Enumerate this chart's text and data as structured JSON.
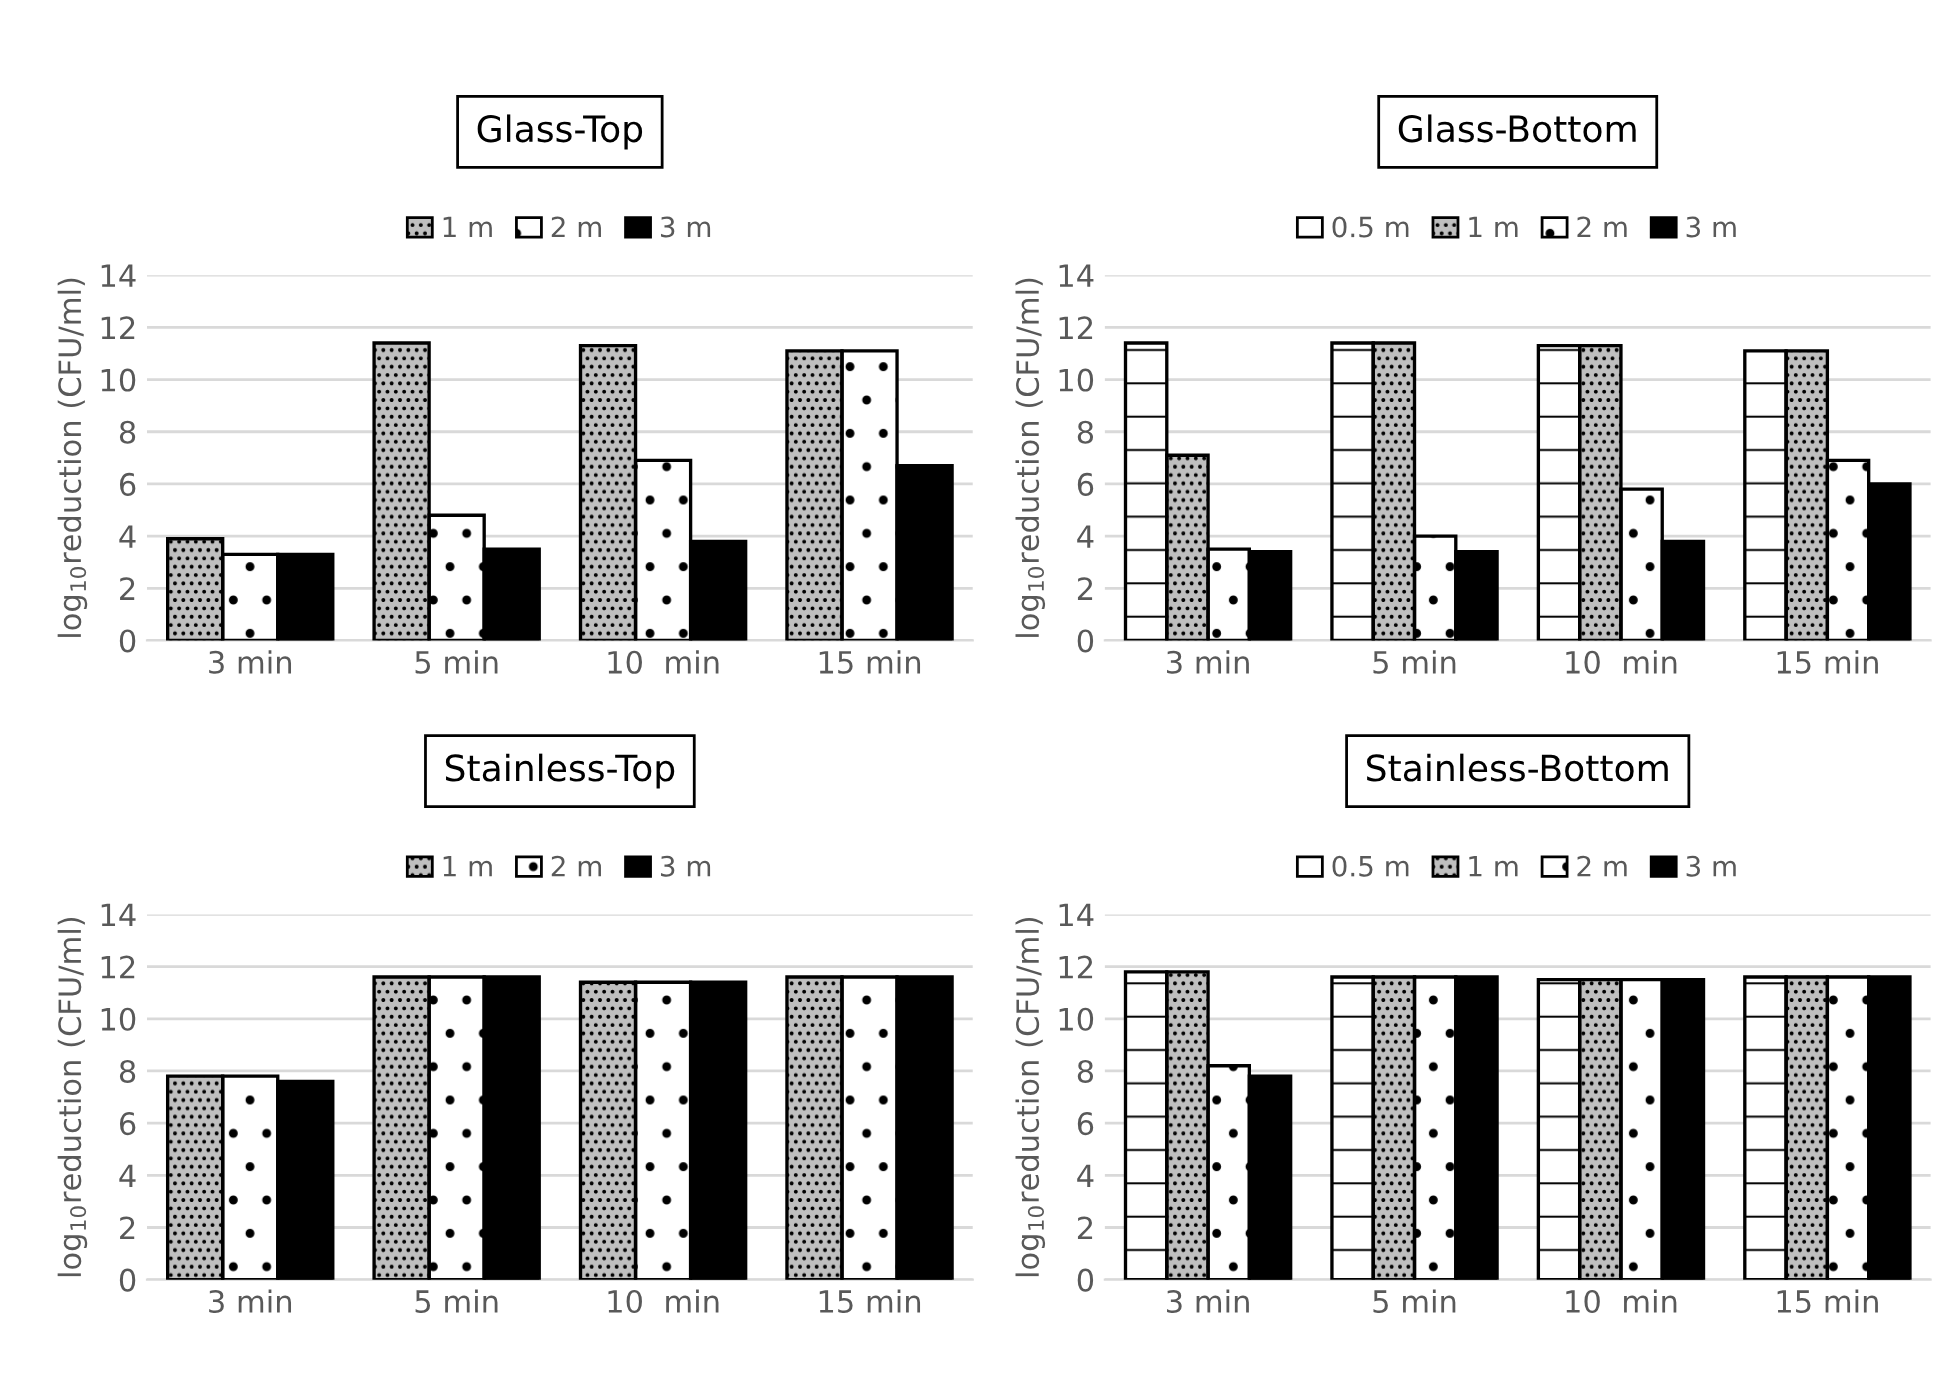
{
  "chart_data": [
    {
      "type": "bar",
      "title": "Glass-Top",
      "ylabel": "log$_{10}$reduction (CFU/ml)",
      "categories": [
        "3 min",
        "5 min",
        "10  min",
        "15 min"
      ],
      "ylim": [
        0,
        14
      ],
      "yticks": [
        0,
        2,
        4,
        6,
        8,
        10,
        12,
        14
      ],
      "grid": "y",
      "legend": "top",
      "series": [
        {
          "name": "1 m",
          "color": "#bfbfbf",
          "values": [
            3.9,
            11.4,
            11.3,
            11.1
          ]
        },
        {
          "name": "2 m",
          "color": "#ffffff",
          "values": [
            3.3,
            4.8,
            6.9,
            11.1
          ]
        },
        {
          "name": "3 m",
          "color": "#000000",
          "values": [
            3.3,
            3.5,
            3.8,
            6.7
          ]
        }
      ]
    },
    {
      "type": "bar",
      "title": "Glass-Bottom",
      "ylabel": "log$_{10}$reduction (CFU/ml)",
      "categories": [
        "3 min",
        "5 min",
        "10  min",
        "15 min"
      ],
      "ylim": [
        0,
        14
      ],
      "yticks": [
        0,
        2,
        4,
        6,
        8,
        10,
        12,
        14
      ],
      "grid": "y",
      "legend": "top",
      "series": [
        {
          "name": "0.5 m",
          "color": "#ffffff",
          "values": [
            11.4,
            11.4,
            11.3,
            11.1
          ]
        },
        {
          "name": "1 m",
          "color": "#bfbfbf",
          "values": [
            7.1,
            11.4,
            11.3,
            11.1
          ]
        },
        {
          "name": "2 m",
          "color": "#ffffff",
          "values": [
            3.5,
            4.0,
            5.8,
            6.9
          ]
        },
        {
          "name": "3 m",
          "color": "#000000",
          "values": [
            3.4,
            3.4,
            3.8,
            6.0
          ]
        }
      ]
    },
    {
      "type": "bar",
      "title": "Stainless-Top",
      "ylabel": "log$_{10}$reduction (CFU/ml)",
      "categories": [
        "3 min",
        "5 min",
        "10  min",
        "15 min"
      ],
      "ylim": [
        0,
        14
      ],
      "yticks": [
        0,
        2,
        4,
        6,
        8,
        10,
        12,
        14
      ],
      "grid": "y",
      "legend": "top",
      "series": [
        {
          "name": "1 m",
          "color": "#bfbfbf",
          "values": [
            7.8,
            11.6,
            11.4,
            11.6
          ]
        },
        {
          "name": "2 m",
          "color": "#ffffff",
          "values": [
            7.8,
            11.6,
            11.4,
            11.6
          ]
        },
        {
          "name": "3 m",
          "color": "#000000",
          "values": [
            7.6,
            11.6,
            11.4,
            11.6
          ]
        }
      ]
    },
    {
      "type": "bar",
      "title": "Stainless-Bottom",
      "ylabel": "log$_{10}$reduction (CFU/ml)",
      "categories": [
        "3 min",
        "5 min",
        "10  min",
        "15 min"
      ],
      "ylim": [
        0,
        14
      ],
      "yticks": [
        0,
        2,
        4,
        6,
        8,
        10,
        12,
        14
      ],
      "grid": "y",
      "legend": "top",
      "series": [
        {
          "name": "0.5 m",
          "color": "#ffffff",
          "values": [
            11.8,
            11.6,
            11.5,
            11.6
          ]
        },
        {
          "name": "1 m",
          "color": "#bfbfbf",
          "values": [
            11.8,
            11.6,
            11.5,
            11.6
          ]
        },
        {
          "name": "2 m",
          "color": "#ffffff",
          "values": [
            8.2,
            11.6,
            11.5,
            11.6
          ]
        },
        {
          "name": "3 m",
          "color": "#000000",
          "values": [
            7.8,
            11.6,
            11.5,
            11.6
          ]
        }
      ]
    }
  ]
}
